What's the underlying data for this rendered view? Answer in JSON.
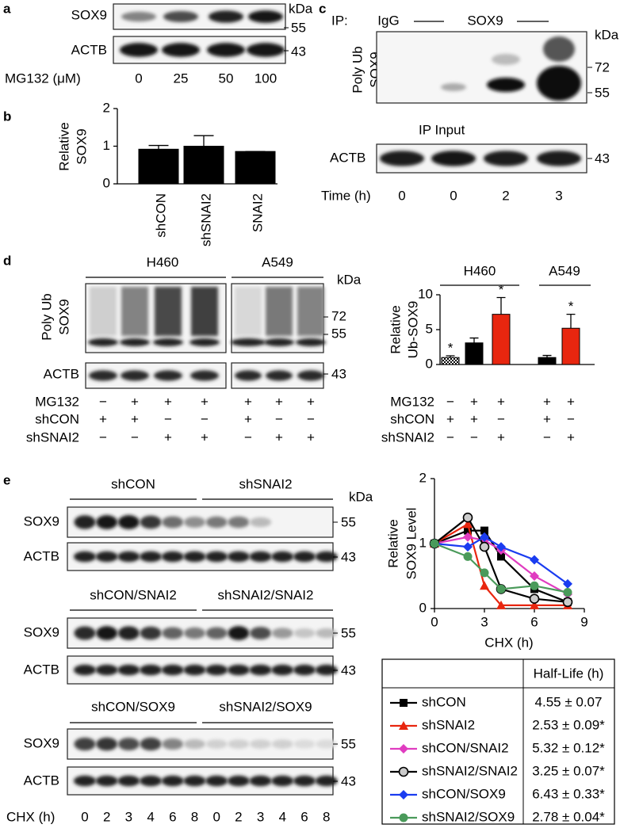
{
  "panels": {
    "a": {
      "label": "a",
      "rows": [
        "SOX9",
        "ACTB"
      ],
      "kda": "kDa",
      "markers": [
        "55",
        "43"
      ],
      "treatment": "MG132 (μM)",
      "doses": [
        "0",
        "25",
        "50",
        "100"
      ]
    },
    "b": {
      "label": "b"
    },
    "c": {
      "label": "c",
      "ip": "IP:",
      "groups": [
        "IgG",
        "SOX9"
      ],
      "kda": "kDa",
      "ylabel": [
        "Poly Ub",
        "SOX9"
      ],
      "markers": [
        "72",
        "55",
        "43"
      ],
      "input": "IP Input",
      "row": "ACTB",
      "time_label": "Time (h)",
      "times": [
        "0",
        "0",
        "2",
        "3"
      ]
    },
    "d": {
      "label": "d",
      "cells": [
        "H460",
        "A549"
      ],
      "kda": "kDa",
      "ylabel": [
        "Poly Ub",
        "SOX9"
      ],
      "row": "ACTB",
      "markers": [
        "72",
        "55",
        "43"
      ],
      "conditions": [
        "MG132",
        "shCON",
        "shSNAI2"
      ],
      "signs": [
        [
          "−",
          "+",
          "+",
          "+",
          "+",
          "+",
          "+"
        ],
        [
          "+",
          "+",
          "−",
          "−",
          "+",
          "−",
          "−"
        ],
        [
          "−",
          "−",
          "+",
          "+",
          "−",
          "+",
          "+"
        ]
      ]
    },
    "e": {
      "label": "e",
      "groups": [
        [
          {
            "text": "shCON",
            "color": "#000000"
          },
          {
            "text": "shSNAI2",
            "color": "#e0201b"
          }
        ],
        [
          {
            "text": "shCON/SNAI2",
            "color": "#e03cc0"
          },
          {
            "text": "shSNAI2/SNAI2",
            "color": "#6d6d6d"
          }
        ],
        [
          {
            "text": "shCON/SOX9",
            "color": "#1a1aee"
          },
          {
            "text": "shSNAI2/SOX9",
            "color": "#3a8a2a"
          }
        ]
      ],
      "rows": [
        "SOX9",
        "ACTB"
      ],
      "kda": "kDa",
      "markers": [
        "55",
        "43"
      ],
      "time_label": "CHX (h)",
      "times": [
        "0",
        "2",
        "3",
        "4",
        "6",
        "8",
        "0",
        "2",
        "3",
        "4",
        "6",
        "8"
      ]
    }
  },
  "chart_data": [
    {
      "type": "bar",
      "ylabel": [
        "Relative",
        "SOX9"
      ],
      "categories": [
        "shCON",
        "shSNAI2",
        "SNAI2"
      ],
      "values": [
        0.92,
        1.0,
        0.86
      ],
      "errors": [
        0.1,
        0.28,
        0
      ],
      "color": "#000000",
      "ylim": [
        0,
        2
      ],
      "yticks": [
        0,
        1,
        2
      ]
    },
    {
      "type": "bar",
      "ylabel": [
        "Relative",
        "Ub-SOX9"
      ],
      "groups": [
        "H460",
        "A549"
      ],
      "values": [
        1.0,
        3.1,
        7.2,
        1.0,
        5.2
      ],
      "errors": [
        0.25,
        0.7,
        2.4,
        0.3,
        2.0
      ],
      "colors": [
        "#ffffff",
        "#000000",
        "#e8260f",
        "#000000",
        "#e8260f"
      ],
      "hatch": [
        true,
        false,
        false,
        false,
        false
      ],
      "markers": [
        "*",
        null,
        "*",
        null,
        "*"
      ],
      "ylim": [
        0,
        10
      ],
      "yticks": [
        0,
        5,
        10
      ],
      "conditions": [
        "MG132",
        "shCON",
        "shSNAI2"
      ],
      "signs": [
        [
          "−",
          "+",
          "+",
          "+",
          "+"
        ],
        [
          "+",
          "+",
          "−",
          "+",
          "−"
        ],
        [
          "−",
          "−",
          "+",
          "−",
          "+"
        ]
      ]
    },
    {
      "type": "line",
      "ylabel": [
        "Relative",
        "SOX9 Level"
      ],
      "xlabel": "CHX (h)",
      "x": [
        0,
        2,
        3,
        4,
        6,
        8
      ],
      "xlim": [
        0,
        9
      ],
      "xticks": [
        0,
        3,
        6,
        9
      ],
      "ylim": [
        0,
        2
      ],
      "yticks": [
        0,
        1,
        2
      ],
      "table_header": "Half-Life (h)",
      "series": [
        {
          "name": "shCON",
          "color": "#000000",
          "marker": "square",
          "values": [
            1,
            1.2,
            1.2,
            0.8,
            0.3,
            0.1
          ],
          "half_life": "4.55 ± 0.07"
        },
        {
          "name": "shSNAI2",
          "color": "#e8260f",
          "marker": "triangle",
          "values": [
            1,
            1.3,
            0.35,
            0.05,
            0.05,
            0.05
          ],
          "half_life": "2.53 ± 0.09*"
        },
        {
          "name": "shCON/SNAI2",
          "color": "#e03cc0",
          "marker": "diamond",
          "values": [
            1,
            1.1,
            1.05,
            0.9,
            0.5,
            0.22
          ],
          "half_life": "5.32 ± 0.12*"
        },
        {
          "name": "shSNAI2/SNAI2",
          "color": "#000000",
          "marker": "circle",
          "values": [
            1,
            1.4,
            0.95,
            0.3,
            0.15,
            0.1
          ],
          "half_life": "3.25 ± 0.07*"
        },
        {
          "name": "shCON/SOX9",
          "color": "#1a3cf0",
          "marker": "diamond",
          "values": [
            1,
            0.95,
            1.1,
            0.95,
            0.75,
            0.38
          ],
          "half_life": "6.43 ± 0.33*"
        },
        {
          "name": "shSNAI2/SOX9",
          "color": "#4a9a5a",
          "marker": "circle",
          "values": [
            1,
            0.8,
            0.55,
            0.3,
            0.35,
            0.25
          ],
          "half_life": "2.78 ± 0.04*"
        }
      ]
    }
  ]
}
